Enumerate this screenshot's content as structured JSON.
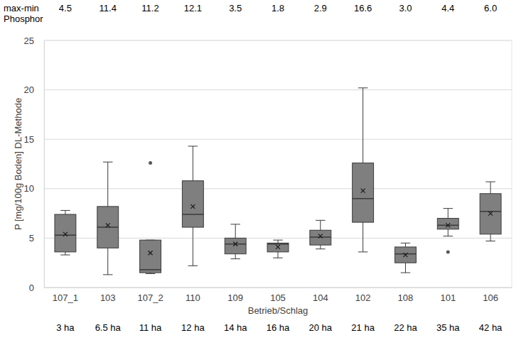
{
  "chart_data": {
    "type": "box",
    "y_label": "P [mg/100g Boden] DL-Methode",
    "x_label": "Betrieb/Schlag",
    "categories": [
      "107_1",
      "103",
      "107_2",
      "110",
      "109",
      "105",
      "104",
      "102",
      "108",
      "101",
      "106"
    ],
    "min": [
      3.3,
      1.3,
      1.4,
      2.2,
      2.9,
      3.0,
      3.9,
      3.6,
      1.5,
      5.2,
      4.7
    ],
    "q1": [
      3.6,
      4.0,
      1.5,
      6.1,
      3.4,
      3.6,
      4.3,
      6.6,
      2.5,
      5.9,
      5.4
    ],
    "median": [
      5.3,
      6.1,
      1.8,
      7.4,
      4.4,
      4.4,
      5.1,
      9.0,
      3.4,
      6.3,
      7.7
    ],
    "q3": [
      7.4,
      8.2,
      4.8,
      10.8,
      5.0,
      4.5,
      5.8,
      12.6,
      4.1,
      7.0,
      9.5
    ],
    "max": [
      7.8,
      12.7,
      4.8,
      14.3,
      6.4,
      4.8,
      6.8,
      20.2,
      4.5,
      8.0,
      10.7
    ],
    "mean": [
      5.4,
      6.3,
      3.5,
      8.2,
      4.4,
      4.1,
      5.2,
      9.8,
      3.3,
      6.3,
      7.5
    ],
    "outliers": [
      [],
      [],
      [
        12.6
      ],
      [],
      [],
      [],
      [],
      [],
      [],
      [
        3.6
      ],
      []
    ],
    "range_title": [
      "max-min",
      "Phosphor"
    ],
    "range_values": [
      4.5,
      11.4,
      11.2,
      12.1,
      3.5,
      1.8,
      2.9,
      16.6,
      3.0,
      4.4,
      6.0
    ],
    "range_value_labels": [
      "4.5",
      "11.4",
      "11.2",
      "12.1",
      "3.5",
      "1.8",
      "2.9",
      "16.6",
      "3.0",
      "4.4",
      "6.0"
    ],
    "areas": [
      "3 ha",
      "6.5 ha",
      "11 ha",
      "12 ha",
      "14 ha",
      "16 ha",
      "20 ha",
      "21 ha",
      "22 ha",
      "35 ha",
      "42 ha"
    ],
    "ylim": [
      0,
      25
    ],
    "yticks": [
      0,
      5,
      10,
      15,
      20,
      25
    ],
    "grid": true,
    "color": "#7f7f7f"
  }
}
